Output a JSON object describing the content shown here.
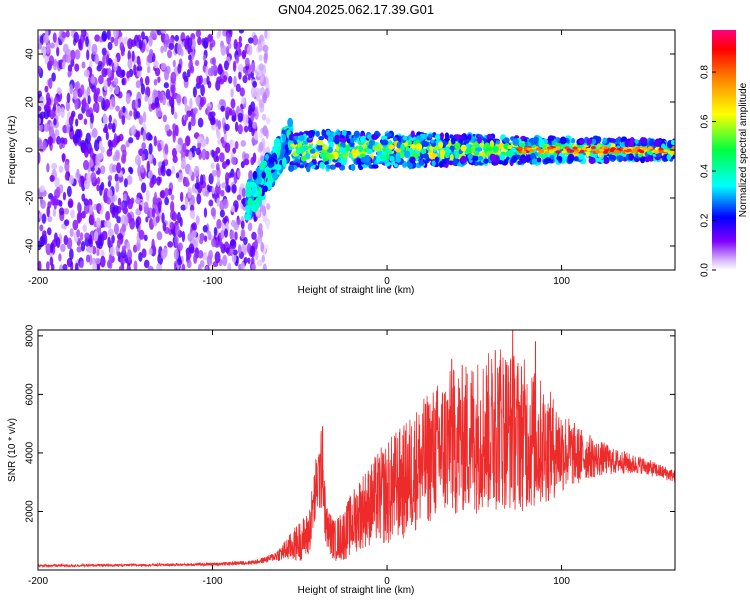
{
  "page_title": "GN04.2025.062.17.39.G01",
  "chart_data": [
    {
      "type": "heatmap",
      "xlabel": "Height of straight line (km)",
      "ylabel": "Frequency (Hz)",
      "xlim": [
        -200,
        165
      ],
      "ylim": [
        -50,
        50
      ],
      "x_ticks": [
        -200,
        -100,
        0,
        100
      ],
      "y_ticks": [
        -40,
        -20,
        0,
        20,
        40
      ],
      "colorbar": {
        "label": "Normalized spectral amplitude",
        "range": [
          0,
          0.97
        ],
        "ticks": [
          0.0,
          0.2,
          0.4,
          0.6,
          0.8
        ],
        "colormap": [
          "#ffffff",
          "#c9a6f5",
          "#8000ff",
          "#0000ff",
          "#00ffff",
          "#00ff00",
          "#ffff00",
          "#ff8000",
          "#ff0000",
          "#ff0080"
        ]
      },
      "regions": [
        {
          "x_from": -200,
          "x_to": -68,
          "freq_from": -50,
          "freq_to": 50,
          "level": 0.1,
          "pattern": "broadband noise"
        },
        {
          "x_from": -80,
          "x_to": -55,
          "freq_from": -22,
          "freq_to": 5,
          "level": 0.3,
          "pattern": "rising trace"
        },
        {
          "x_from": -55,
          "x_to": 165,
          "freq_from": -8,
          "freq_to": 8,
          "level": 0.35,
          "pattern": "narrow band"
        },
        {
          "x_from": 75,
          "x_to": 165,
          "freq_from": -1,
          "freq_to": 1,
          "level": 0.85,
          "pattern": "strong center line"
        }
      ],
      "grid": false
    },
    {
      "type": "line",
      "xlabel": "Height of straight line (km)",
      "ylabel": "SNR (10 * v/v)",
      "xlim": [
        -200,
        165
      ],
      "ylim": [
        0,
        8200
      ],
      "x_ticks": [
        -200,
        -100,
        0,
        100
      ],
      "y_ticks": [
        2000,
        4000,
        6000,
        8000
      ],
      "series": [
        {
          "color": "#ee2b2b",
          "x": [
            -200,
            -180,
            -160,
            -140,
            -120,
            -100,
            -90,
            -80,
            -75,
            -70,
            -65,
            -60,
            -55,
            -50,
            -45,
            -40,
            -37,
            -35,
            -30,
            -25,
            -20,
            -15,
            -10,
            -5,
            0,
            5,
            10,
            15,
            20,
            25,
            30,
            35,
            40,
            45,
            50,
            55,
            60,
            65,
            70,
            75,
            80,
            85,
            90,
            95,
            100,
            105,
            110,
            115,
            120,
            125,
            130,
            135,
            140,
            145,
            150,
            155,
            160,
            165
          ],
          "y": [
            150,
            150,
            160,
            170,
            180,
            200,
            220,
            250,
            280,
            350,
            450,
            600,
            800,
            1000,
            1200,
            3000,
            3500,
            1500,
            1000,
            1200,
            1600,
            2000,
            2200,
            2500,
            2600,
            2900,
            3000,
            3400,
            3600,
            3900,
            4100,
            4300,
            4400,
            4500,
            4600,
            4700,
            4700,
            5000,
            4800,
            4700,
            4600,
            4400,
            4300,
            4200,
            4100,
            4000,
            3900,
            3900,
            3800,
            3800,
            3700,
            3700,
            3600,
            3600,
            3500,
            3400,
            3300,
            3200
          ],
          "noise_amplitude": [
            40,
            40,
            40,
            40,
            45,
            50,
            60,
            70,
            80,
            100,
            150,
            300,
            500,
            700,
            800,
            1200,
            1500,
            800,
            700,
            900,
            1100,
            1300,
            1400,
            1600,
            1800,
            1900,
            2000,
            2100,
            2200,
            2300,
            2400,
            2500,
            2600,
            2600,
            2700,
            2700,
            2800,
            2900,
            2800,
            2700,
            2600,
            2400,
            2100,
            1800,
            1500,
            1200,
            1000,
            800,
            650,
            550,
            450,
            400,
            350,
            300,
            280,
            250,
            230,
            220
          ],
          "peak_values": [
            {
              "x": 72,
              "y": 8200
            },
            {
              "x": 85,
              "y": 7800
            },
            {
              "x": 62,
              "y": 7500
            },
            {
              "x": 37,
              "y": 7200
            },
            {
              "x": -37,
              "y": 4900
            }
          ]
        }
      ],
      "grid": false
    }
  ]
}
